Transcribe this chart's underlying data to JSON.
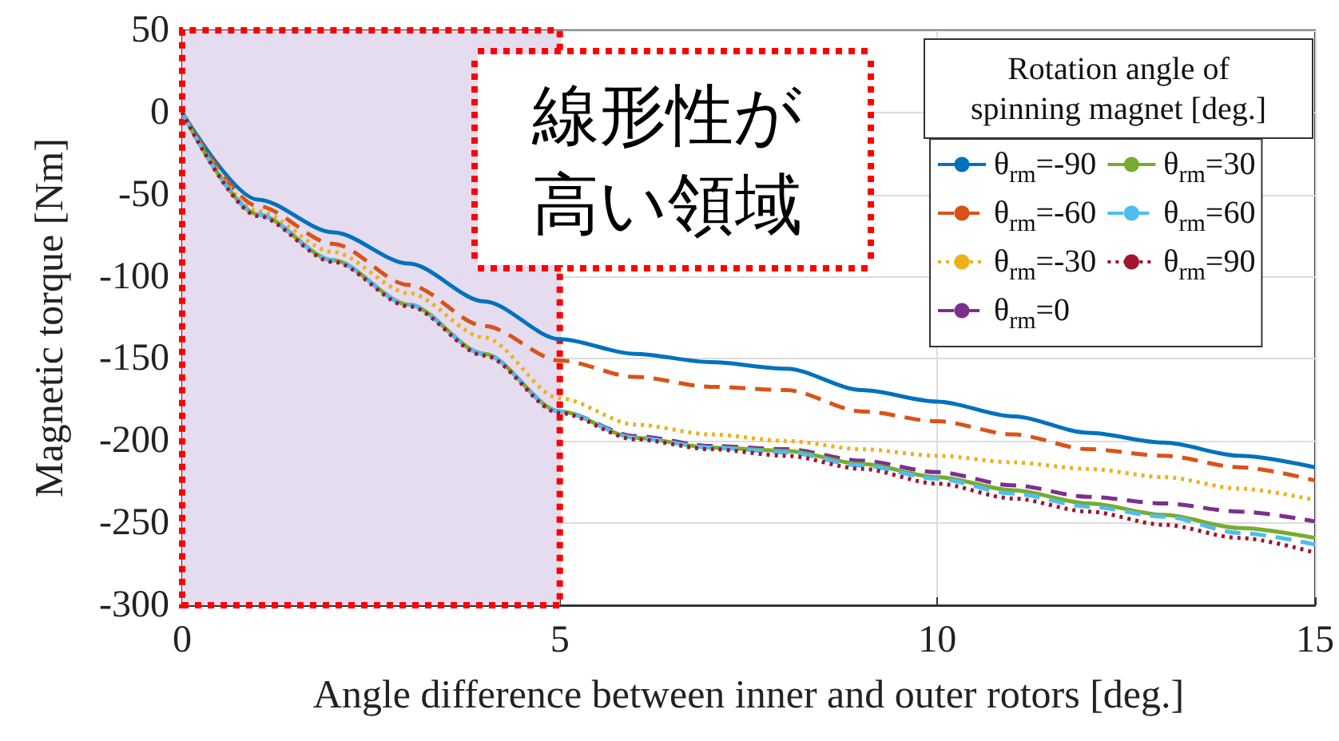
{
  "chart_data": {
    "type": "line",
    "xlabel": "Angle difference between inner and outer rotors [deg.]",
    "ylabel": "Magnetic torque [Nm]",
    "legend_title": "Rotation angle of\nspinning magnet [deg.]",
    "annotations": [
      "線形性が高い領域"
    ],
    "x": [
      0,
      1,
      2,
      3,
      4,
      5,
      6,
      7,
      8,
      9,
      10,
      11,
      12,
      13,
      14,
      15
    ],
    "series": [
      {
        "name": "θ$_{rm}$=-90",
        "color": "#0072bd",
        "line_style": "solid",
        "values": [
          0,
          -53,
          -73,
          -92,
          -115,
          -138,
          -147,
          -152,
          -156,
          -169,
          -176,
          -185,
          -195,
          -201,
          -209,
          -216
        ]
      },
      {
        "name": "θ$_{rm}$=-60",
        "color": "#d95319",
        "line_style": "dashed",
        "values": [
          0,
          -57,
          -80,
          -105,
          -130,
          -151,
          -161,
          -167,
          -169,
          -182,
          -188,
          -196,
          -205,
          -209,
          -216,
          -224
        ]
      },
      {
        "name": "θ$_{rm}$=-30",
        "color": "#edb120",
        "line_style": "dotted",
        "values": [
          0,
          -60,
          -85,
          -110,
          -137,
          -174,
          -190,
          -196,
          -200,
          -205,
          -209,
          -213,
          -217,
          -222,
          -229,
          -236
        ]
      },
      {
        "name": "θ$_{rm}$=0",
        "color": "#7e2f8e",
        "line_style": "dashed",
        "values": [
          0,
          -62,
          -90,
          -117,
          -147,
          -182,
          -197,
          -203,
          -205,
          -212,
          -219,
          -227,
          -234,
          -238,
          -243,
          -249
        ]
      },
      {
        "name": "θ$_{rm}$=30",
        "color": "#77ac30",
        "line_style": "solid",
        "values": [
          0,
          -62,
          -90,
          -117,
          -147,
          -182,
          -198,
          -204,
          -206,
          -214,
          -222,
          -230,
          -238,
          -245,
          -253,
          -259
        ]
      },
      {
        "name": "θ$_{rm}$=60",
        "color": "#4dbeee",
        "line_style": "dashed",
        "values": [
          0,
          -62,
          -90,
          -117,
          -147,
          -182,
          -198,
          -204,
          -207,
          -215,
          -223,
          -232,
          -240,
          -246,
          -256,
          -263
        ]
      },
      {
        "name": "θ$_{rm}$=90",
        "color": "#a2142f",
        "line_style": "dotted",
        "values": [
          0,
          -63,
          -91,
          -118,
          -148,
          -183,
          -199,
          -205,
          -209,
          -217,
          -226,
          -235,
          -243,
          -251,
          -259,
          -268
        ]
      }
    ],
    "bands": [
      {
        "axis": "x",
        "from": 0,
        "to": 5,
        "color": "#e6dcef"
      }
    ],
    "xlim": [
      0,
      15
    ],
    "xticks": [
      0,
      5,
      10,
      15
    ],
    "ylim": [
      -300,
      50
    ],
    "yticks": [
      50,
      0,
      -50,
      -100,
      -150,
      -200,
      -250,
      -300
    ],
    "grid": true,
    "legend": "top right",
    "marker": "none"
  }
}
